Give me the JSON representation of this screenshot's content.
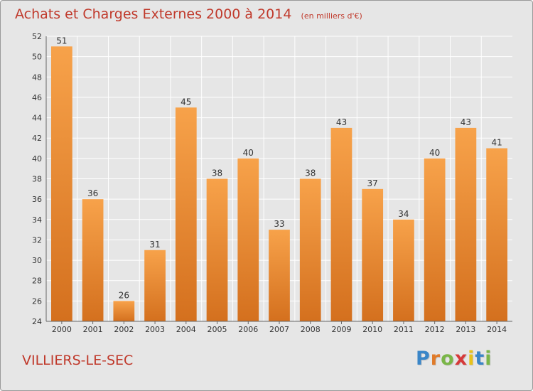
{
  "chart_data": {
    "type": "bar",
    "title": "Achats et Charges Externes 2000 à 2014",
    "subtitle": "(en milliers d'€)",
    "categories": [
      "2000",
      "2001",
      "2002",
      "2003",
      "2004",
      "2005",
      "2006",
      "2007",
      "2008",
      "2009",
      "2010",
      "2011",
      "2012",
      "2013",
      "2014"
    ],
    "values": [
      51,
      36,
      26,
      31,
      45,
      38,
      40,
      33,
      38,
      43,
      37,
      34,
      40,
      43,
      41
    ],
    "ylim": [
      24,
      52
    ],
    "yticks": [
      24,
      26,
      28,
      30,
      32,
      34,
      36,
      38,
      40,
      42,
      44,
      46,
      48,
      50,
      52
    ],
    "xlabel": "",
    "ylabel": "",
    "grid": true,
    "bar_color_top": "#f7a24a",
    "bar_color_bottom": "#d4701e"
  },
  "footer": {
    "commune": "VILLIERS-LE-SEC",
    "brand": {
      "letters": [
        "P",
        "r",
        "o",
        "x",
        "i",
        "t",
        "i"
      ],
      "colors": [
        "#3a86c8",
        "#e07b2a",
        "#7ab648",
        "#d63a3a",
        "#e8c21a",
        "#3a86c8",
        "#7ab648"
      ]
    }
  },
  "colors": {
    "title": "#c0392b",
    "background": "#e6e6e6",
    "grid": "#ffffff"
  }
}
